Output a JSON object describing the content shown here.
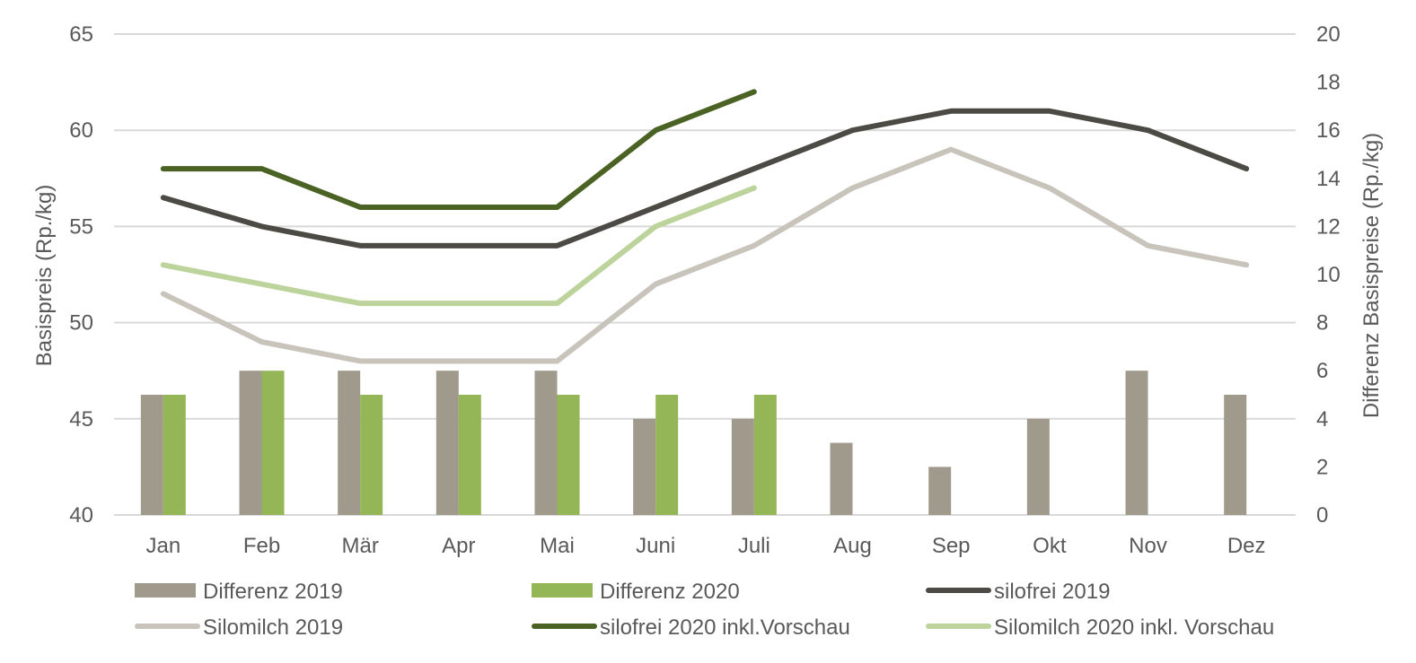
{
  "chart_data": {
    "type": "bar+line",
    "categories": [
      "Jan",
      "Feb",
      "Mär",
      "Apr",
      "Mai",
      "Juni",
      "Juli",
      "Aug",
      "Sep",
      "Okt",
      "Nov",
      "Dez"
    ],
    "y_left": {
      "label": "Basispreis (Rp./kg)",
      "lim": [
        40,
        65
      ],
      "ticks": [
        "40",
        "45",
        "50",
        "55",
        "60",
        "65"
      ]
    },
    "y_right": {
      "label": "Differenz Basispreise (Rp./kg)",
      "lim": [
        0,
        20
      ],
      "ticks": [
        "0",
        "2",
        "4",
        "6",
        "8",
        "10",
        "12",
        "14",
        "16",
        "18",
        "20"
      ]
    },
    "grid": true,
    "legend_position": "bottom",
    "bar_series": [
      {
        "name": "Differenz 2019",
        "color": "#a09a8c",
        "axis": "right",
        "values": [
          5,
          6,
          6,
          6,
          6,
          4,
          4,
          3,
          2,
          4,
          6,
          5
        ]
      },
      {
        "name": "Differenz 2020",
        "color": "#95b657",
        "axis": "right",
        "values": [
          5,
          6,
          5,
          5,
          5,
          5,
          5,
          null,
          null,
          null,
          null,
          null
        ]
      }
    ],
    "line_series": [
      {
        "name": "silofrei 2019",
        "color": "#4c4a44",
        "axis": "left",
        "values": [
          56.5,
          55,
          54,
          54,
          54,
          56,
          58,
          60,
          61,
          61,
          60,
          58
        ]
      },
      {
        "name": "Silomilch 2019",
        "color": "#c8c4bc",
        "axis": "left",
        "values": [
          51.5,
          49,
          48,
          48,
          48,
          52,
          54,
          57,
          59,
          57,
          54,
          53
        ]
      },
      {
        "name": "silofrei 2020 inkl.Vorschau",
        "color": "#4a6324",
        "axis": "left",
        "values": [
          58,
          58,
          56,
          56,
          56,
          60,
          62,
          null,
          null,
          null,
          null,
          null
        ]
      },
      {
        "name": "Silomilch 2020 inkl. Vorschau",
        "color": "#bcd49b",
        "axis": "left",
        "values": [
          53,
          52,
          51,
          51,
          51,
          55,
          57,
          null,
          null,
          null,
          null,
          null
        ]
      }
    ],
    "legend": [
      {
        "label": "Differenz 2019",
        "kind": "bar",
        "color": "#a09a8c"
      },
      {
        "label": "Differenz 2020",
        "kind": "bar",
        "color": "#95b657"
      },
      {
        "label": "silofrei 2019",
        "kind": "line",
        "color": "#4c4a44"
      },
      {
        "label": "Silomilch 2019",
        "kind": "line",
        "color": "#c8c4bc"
      },
      {
        "label": "silofrei 2020 inkl.Vorschau",
        "kind": "line",
        "color": "#4a6324"
      },
      {
        "label": "Silomilch 2020 inkl. Vorschau",
        "kind": "line",
        "color": "#bcd49b"
      }
    ]
  }
}
